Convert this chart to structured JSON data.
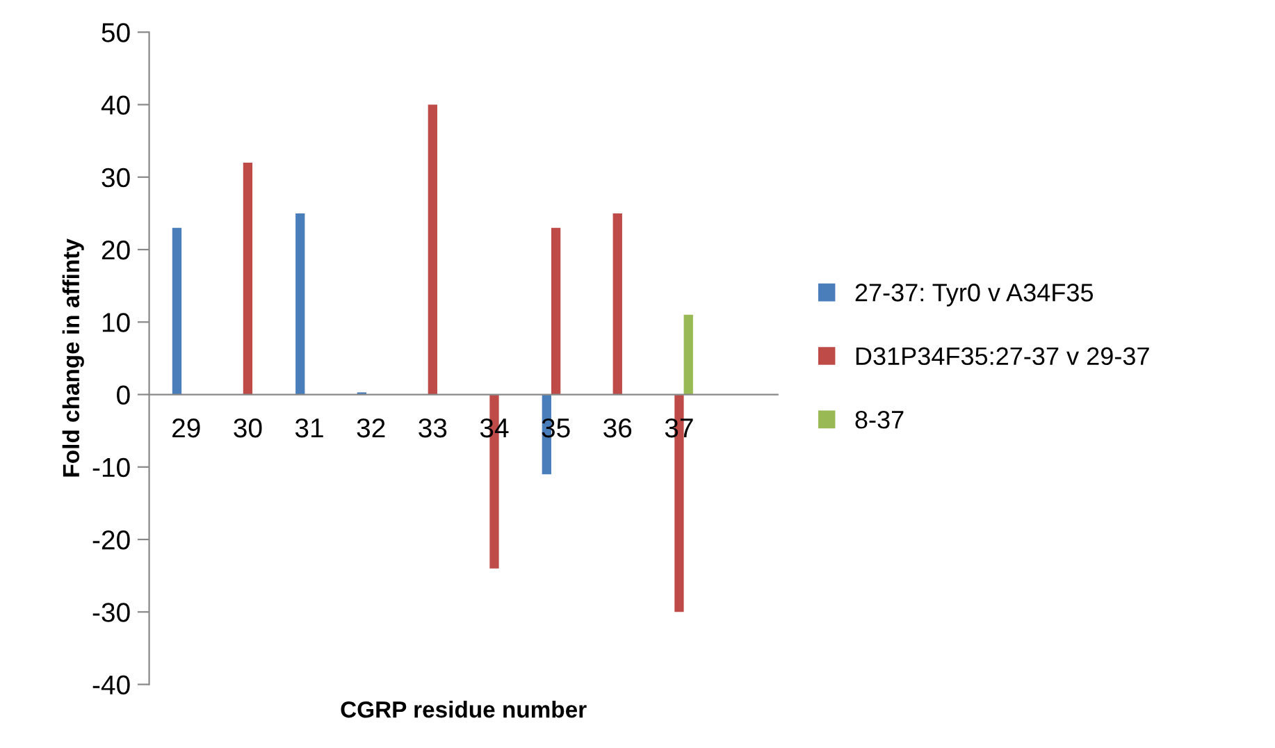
{
  "chart_data": {
    "type": "bar",
    "xlabel": "CGRP residue number",
    "ylabel": "Fold change in affinty",
    "categories": [
      "29",
      "30",
      "31",
      "32",
      "33",
      "34",
      "35",
      "36",
      "37"
    ],
    "series": [
      {
        "name": "27-37: Tyr0 v A34F35",
        "color": "#4a7ebb",
        "values": [
          23,
          null,
          25,
          0.3,
          null,
          null,
          -11,
          null,
          null
        ]
      },
      {
        "name": "D31P34F35:27-37 v 29-37",
        "color": "#be4b48",
        "values": [
          null,
          32,
          null,
          null,
          40,
          -24,
          23,
          25,
          -30
        ]
      },
      {
        "name": "8-37",
        "color": "#98b954",
        "values": [
          null,
          null,
          null,
          null,
          null,
          null,
          null,
          null,
          11
        ]
      }
    ],
    "ylim": [
      -40,
      50
    ],
    "yticks": [
      -40,
      -30,
      -20,
      -10,
      0,
      10,
      20,
      30,
      40,
      50
    ],
    "grid": false,
    "legend": "right"
  }
}
